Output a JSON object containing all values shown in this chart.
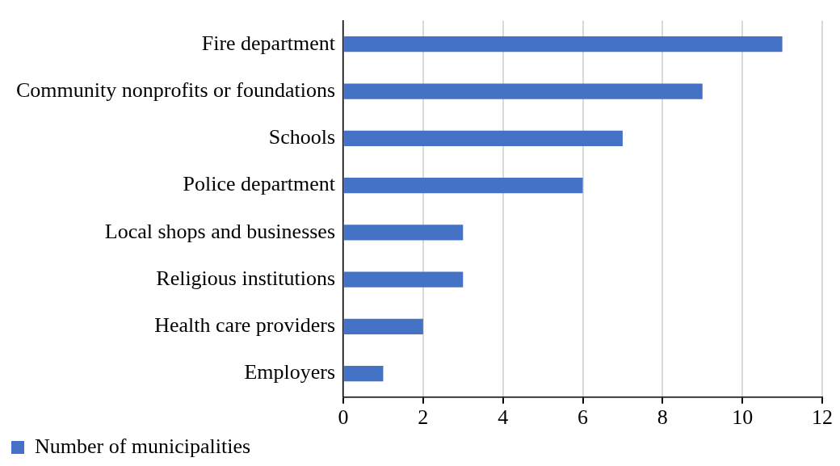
{
  "chart_data": {
    "type": "bar",
    "orientation": "horizontal",
    "categories": [
      "Fire department",
      "Community nonprofits or foundations",
      "Schools",
      "Police department",
      "Local shops and businesses",
      "Religious institutions",
      "Health care providers",
      "Employers"
    ],
    "series": [
      {
        "name": "Number of municipalities",
        "color": "#4472c4",
        "values": [
          11,
          9,
          7,
          6,
          3,
          3,
          2,
          1
        ]
      }
    ],
    "xlim": [
      0,
      12
    ],
    "xticks": [
      0,
      2,
      4,
      6,
      8,
      10,
      12
    ],
    "grid": "x",
    "legend": "bottom"
  }
}
